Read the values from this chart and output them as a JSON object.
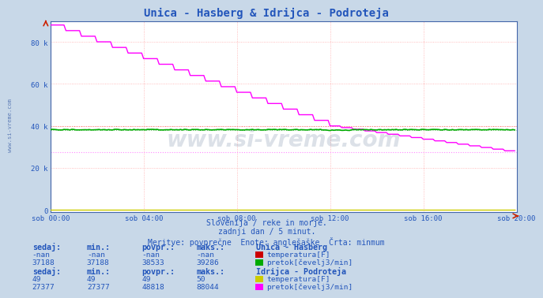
{
  "title": "Unica - Hasberg & Idrijca - Podroteja",
  "subtitle1": "Slovenija / reke in morje.",
  "subtitle2": "zadnji dan / 5 minut.",
  "subtitle3": "Meritve: povprečne  Enote: anglešaške  Črta: minmum",
  "bg_color": "#c8d8e8",
  "plot_bg_color": "#ffffff",
  "grid_color": "#ffaaaa",
  "title_color": "#2255bb",
  "text_color": "#2255bb",
  "xlim_min": 0,
  "xlim_max": 240,
  "ylim_min": -1000,
  "ylim_max": 90000,
  "yticks": [
    0,
    20000,
    40000,
    60000,
    80000
  ],
  "ytick_labels": [
    "0",
    "20 k",
    "40 k",
    "60 k",
    "80 k"
  ],
  "xtick_positions": [
    0,
    48,
    96,
    144,
    192,
    240
  ],
  "xtick_labels": [
    "sob 00:00",
    "sob 04:00",
    "sob 08:00",
    "sob 12:00",
    "sob 16:00",
    "sob 20:00"
  ],
  "unica_pretok_color": "#00aa00",
  "unica_temp_color": "#cc0000",
  "idrijca_pretok_color": "#ff00ff",
  "idrijca_temp_color": "#cccc00",
  "hline_red_y": 40000,
  "hline_pink_y": 27377,
  "hline_green_y": 38200,
  "unica_pretok_min": 37188,
  "unica_pretok_max": 39286,
  "unica_pretok_avg": 38533,
  "idrijca_pretok_min": 27377,
  "idrijca_pretok_max": 88044,
  "idrijca_pretok_avg": 48818,
  "idrijca_temp_val": 49,
  "watermark": "www.si-vreme.com",
  "watermark_color": "#1a3a6a",
  "watermark_alpha": 0.15,
  "legend_color_unica_temp": "#cc0000",
  "legend_color_unica_pretok": "#00aa00",
  "legend_color_idrijca_temp": "#cccc00",
  "legend_color_idrijca_pretok": "#ff00ff",
  "table_header_color": "#2255bb",
  "table_data_color": "#2255bb",
  "sidebar_text": "www.si-vreme.com",
  "sidebar_color": "#4466aa"
}
